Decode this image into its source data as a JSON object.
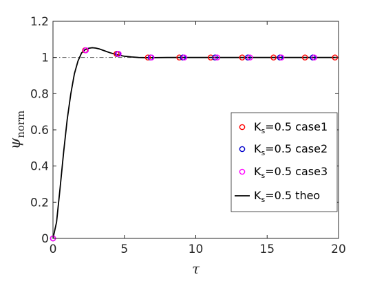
{
  "chart_data": {
    "type": "line",
    "xlabel": "τ",
    "ylabel": "ψ",
    "ylabel_sub": "norm",
    "xlim": [
      0,
      20
    ],
    "ylim": [
      0,
      1.2
    ],
    "xticks": [
      0,
      5,
      10,
      15,
      20
    ],
    "xtick_labels": [
      "0",
      "5",
      "10",
      "15",
      "20"
    ],
    "yticks": [
      0,
      0.2,
      0.4,
      0.6,
      0.8,
      1.0,
      1.2
    ],
    "ytick_labels": [
      "0",
      "0.2",
      "0.4",
      "0.6",
      "0.8",
      "1",
      "1.2"
    ],
    "grid": false,
    "legend_position": "center-right",
    "reference_line": {
      "y": 1.0,
      "style": "dash-dot",
      "color": "#555555"
    },
    "series": [
      {
        "name": "K_s=0.5 case1",
        "label_main": "K",
        "label_sub": "s",
        "label_rest": "=0.5 case1",
        "kind": "scatter",
        "marker": "circle",
        "color": "#ff0000",
        "x": [
          0,
          2.25,
          4.45,
          6.65,
          8.85,
          11.05,
          13.25,
          15.45,
          17.65,
          19.75
        ],
        "y": [
          0,
          1.04,
          1.02,
          1.0,
          1.0,
          1.0,
          1.0,
          1.0,
          1.0,
          1.0
        ]
      },
      {
        "name": "K_s=0.5 case2",
        "label_main": "K",
        "label_sub": "s",
        "label_rest": "=0.5 case2",
        "kind": "scatter",
        "marker": "circle",
        "color": "#0000cc",
        "x": [
          0,
          2.3,
          4.55,
          6.85,
          9.1,
          11.35,
          13.65,
          15.9,
          18.2
        ],
        "y": [
          0,
          1.04,
          1.02,
          1.0,
          1.0,
          1.0,
          1.0,
          1.0,
          1.0
        ]
      },
      {
        "name": "K_s=0.5 case3",
        "label_main": "K",
        "label_sub": "s",
        "label_rest": "=0.5 case3",
        "kind": "scatter",
        "marker": "circle",
        "color": "#ff00ff",
        "x": [
          0,
          2.3,
          4.6,
          6.9,
          9.2,
          11.5,
          13.8,
          16.0,
          18.3
        ],
        "y": [
          0,
          1.04,
          1.02,
          1.0,
          1.0,
          1.0,
          1.0,
          1.0,
          1.0
        ]
      },
      {
        "name": "K_s=0.5 theo",
        "label_main": "K",
        "label_sub": "s",
        "label_rest": "=0.5 theo",
        "kind": "line",
        "color": "#000000",
        "x": [
          0,
          0.25,
          0.5,
          0.75,
          1.0,
          1.25,
          1.5,
          1.75,
          2.0,
          2.25,
          2.5,
          2.75,
          3.0,
          3.25,
          3.5,
          3.75,
          4.0,
          4.5,
          5.0,
          5.5,
          6.0,
          6.5,
          7.0,
          8.0,
          10.0,
          12.0,
          14.0,
          16.0,
          18.0,
          20.0
        ],
        "y": [
          0,
          0.09,
          0.28,
          0.48,
          0.66,
          0.8,
          0.91,
          0.98,
          1.025,
          1.043,
          1.051,
          1.054,
          1.052,
          1.047,
          1.04,
          1.033,
          1.026,
          1.015,
          1.007,
          1.003,
          1.0,
          0.999,
          0.999,
          1.0,
          1.0,
          1.0,
          1.0,
          1.0,
          1.0,
          1.0
        ]
      }
    ]
  }
}
